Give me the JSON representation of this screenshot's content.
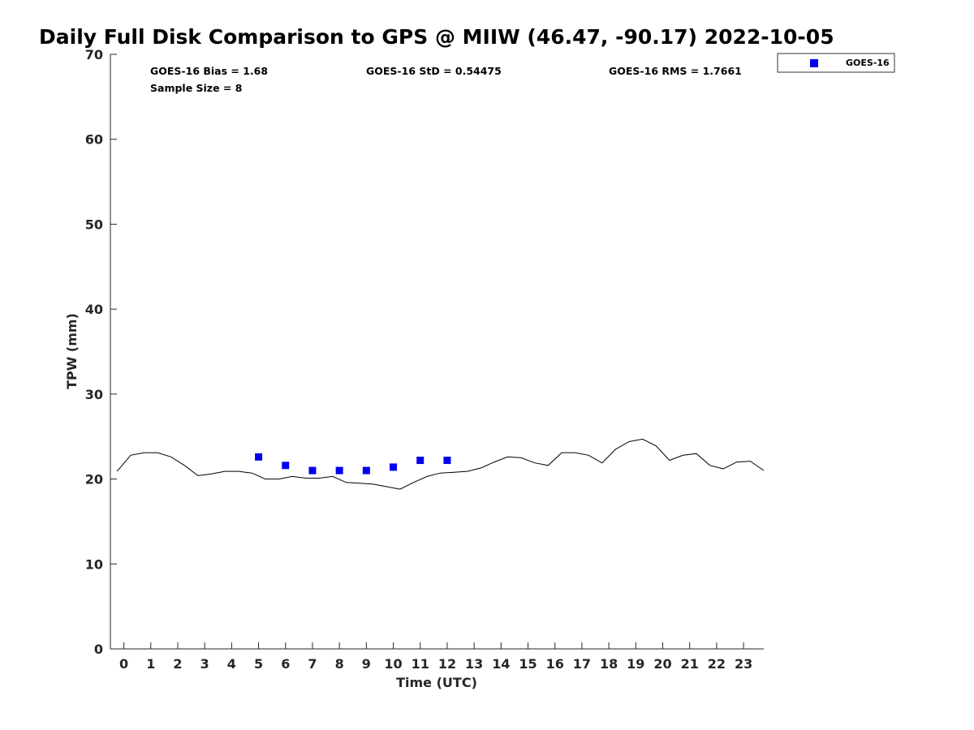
{
  "chart_data": {
    "type": "scatter",
    "title": "Daily Full Disk Comparison to GPS @ MIIW (46.47, -90.17) 2022-10-05",
    "xlabel": "Time (UTC)",
    "ylabel": "TPW (mm)",
    "xlim": [
      -0.5,
      23.75
    ],
    "ylim": [
      0,
      70
    ],
    "x_ticks": [
      0,
      1,
      2,
      3,
      4,
      5,
      6,
      7,
      8,
      9,
      10,
      11,
      12,
      13,
      14,
      15,
      16,
      17,
      18,
      19,
      20,
      21,
      22,
      23
    ],
    "y_ticks": [
      0,
      10,
      20,
      30,
      40,
      50,
      60,
      70
    ],
    "grid": false,
    "legend_position": "top-right outside",
    "stats": {
      "bias": "GOES-16 Bias = 1.68",
      "std": "GOES-16 StD = 0.54475",
      "rms": "GOES-16 RMS = 1.7661",
      "sample_size": "Sample Size = 8"
    },
    "series": [
      {
        "name": "GOES-16",
        "kind": "scatter",
        "marker": "square",
        "color": "#0000ee",
        "x": [
          5,
          6,
          7,
          8,
          9,
          10,
          11,
          12
        ],
        "y": [
          22.6,
          21.6,
          21.0,
          21.0,
          21.0,
          21.4,
          22.2,
          22.2
        ]
      },
      {
        "kind": "line",
        "color": "#000000",
        "x": [
          -0.25,
          0.25,
          0.75,
          1.25,
          1.75,
          2.25,
          2.75,
          3.25,
          3.75,
          4.25,
          4.75,
          5.25,
          5.75,
          6.25,
          6.75,
          7.25,
          7.75,
          8.25,
          8.75,
          9.25,
          9.75,
          10.25,
          10.75,
          11.25,
          11.75,
          12.25,
          12.75,
          13.25,
          13.75,
          14.25,
          14.75,
          15.25,
          15.75,
          16.25,
          16.75,
          17.25,
          17.75,
          18.25,
          18.75,
          19.25,
          19.75,
          20.25,
          20.75,
          21.25,
          21.75,
          22.25,
          22.75,
          23.25,
          23.75
        ],
        "y": [
          20.9,
          22.8,
          23.1,
          23.1,
          22.6,
          21.6,
          20.4,
          20.6,
          20.9,
          20.9,
          20.7,
          20.0,
          20.0,
          20.3,
          20.1,
          20.1,
          20.3,
          19.6,
          19.5,
          19.4,
          19.1,
          18.8,
          19.6,
          20.3,
          20.7,
          20.8,
          20.9,
          21.3,
          22.0,
          22.6,
          22.5,
          21.9,
          21.6,
          23.1,
          23.1,
          22.8,
          21.9,
          23.5,
          24.4,
          24.7,
          23.9,
          22.2,
          22.8,
          23.0,
          21.6,
          21.2,
          22.0,
          22.1,
          21.0
        ]
      }
    ]
  }
}
